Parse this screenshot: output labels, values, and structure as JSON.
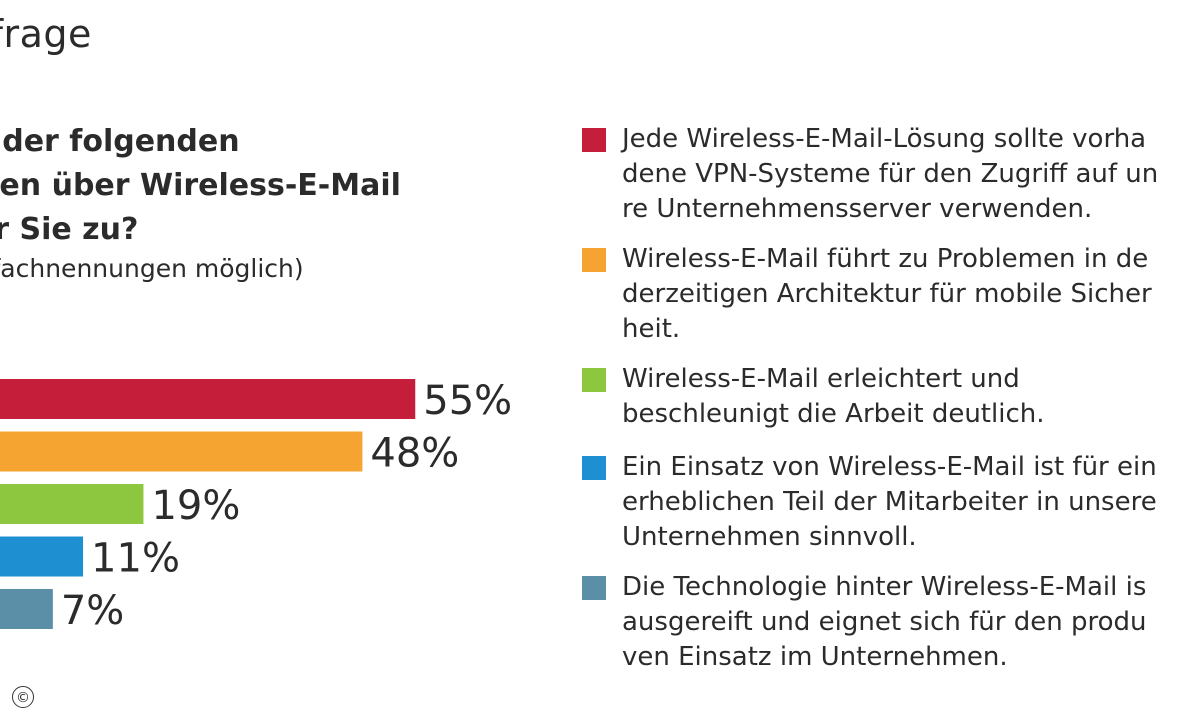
{
  "title": "nfrage",
  "question": {
    "lines": [
      "lche der folgenden",
      "ssagen über Wireless-E-Mail",
      "ft für Sie zu?"
    ],
    "note": "ehrfachnennungen möglich)"
  },
  "chart_data": {
    "type": "bar",
    "orientation": "horizontal",
    "values": [
      55,
      48,
      19,
      11,
      7
    ],
    "value_labels": [
      "55%",
      "48%",
      "19%",
      "11%",
      "7%"
    ],
    "colors": [
      "#c41e3a",
      "#f5a431",
      "#8dc63f",
      "#1e8fd0",
      "#5b8fa8"
    ],
    "unit": "%",
    "series": [
      {
        "value": 55,
        "color": "#c41e3a",
        "lines": [
          "Jede Wireless-E-Mail-Lösung sollte vorha",
          "dene VPN-Systeme für den Zugriff auf un",
          "re Unternehmensserver verwenden."
        ]
      },
      {
        "value": 48,
        "color": "#f5a431",
        "lines": [
          "Wireless-E-Mail führt zu Problemen in de",
          "derzeitigen Architektur für mobile Sicher",
          "heit."
        ]
      },
      {
        "value": 19,
        "color": "#8dc63f",
        "lines": [
          "Wireless-E-Mail erleichtert und",
          "beschleunigt die Arbeit deutlich."
        ]
      },
      {
        "value": 11,
        "color": "#1e8fd0",
        "lines": [
          "Ein Einsatz von Wireless-E-Mail ist für ein",
          "erheblichen Teil der Mitarbeiter in unsere",
          "Unternehmen sinnvoll."
        ]
      },
      {
        "value": 7,
        "color": "#5b8fa8",
        "lines": [
          "Die Technologie hinter Wireless-E-Mail is",
          "ausgereift und eignet sich für den produ",
          "ven Einsatz im Unternehmen."
        ]
      }
    ]
  },
  "copyright": "©"
}
